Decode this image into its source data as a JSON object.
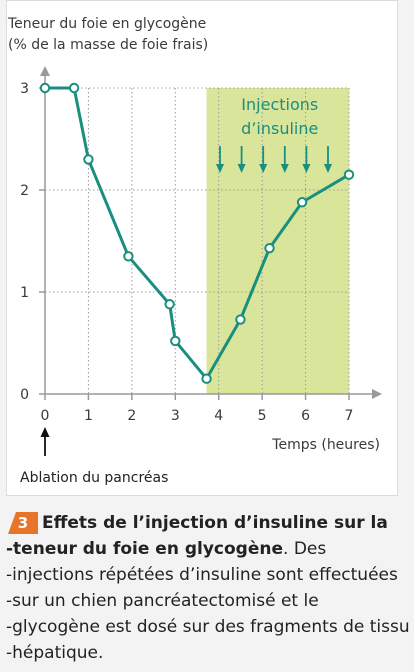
{
  "chart_data": {
    "type": "line",
    "ylabel_line1": "Teneur du foie en glycogène",
    "ylabel_line2": "(% de la masse de foie frais)",
    "xlabel": "Temps (heures)",
    "xlim": [
      0,
      7
    ],
    "ylim": [
      0,
      3
    ],
    "x_ticks": [
      "0",
      "1",
      "2",
      "3",
      "4",
      "5",
      "6",
      "7"
    ],
    "y_ticks": [
      "0",
      "1",
      "2",
      "3"
    ],
    "grid": true,
    "series": [
      {
        "x": [
          0,
          0.67,
          1.0,
          1.92,
          2.87,
          3.0,
          3.72,
          4.5,
          5.17,
          5.92,
          7.0
        ],
        "y": [
          3.0,
          3.0,
          2.3,
          1.35,
          0.88,
          0.52,
          0.15,
          0.73,
          1.43,
          1.88,
          2.15
        ],
        "color": "#1a8f7f"
      }
    ],
    "shaded_region": {
      "x_range": [
        3.72,
        7.0
      ],
      "color": "#d9e59a",
      "label_line1": "Injections",
      "label_line2": "d’insuline",
      "arrow_count": 6
    },
    "start_annotation": "Ablation du pancréas"
  },
  "caption": {
    "number": "3",
    "badge_color": "#e8742a",
    "title_line1": "Effets de l’injection d’insuline sur la",
    "title_line2_bold": "-teneur du foie en glycogène",
    "title_line2_rest": ". Des",
    "line3": "-injections répétées d’insuline sont effectuées",
    "line4": "-sur un chien pancréatectomisé et le",
    "line5": "-glycogène est dosé sur des fragments de tissu",
    "line6": "-hépatique."
  }
}
